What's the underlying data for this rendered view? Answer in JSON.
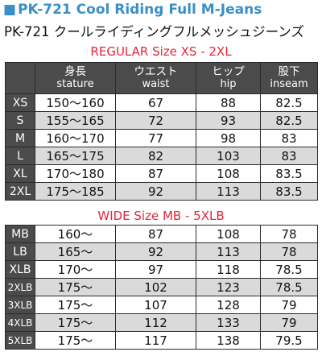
{
  "title_en": "PK-721 Cool Riding Full M-Jeans",
  "title_square": "■",
  "title_jp": "PK-721 クールライディングフルメッシュジーンズ",
  "regular": {
    "heading": "REGULAR Size  XS - 2XL",
    "columns": [
      {
        "jp": "身長",
        "en": "stature"
      },
      {
        "jp": "ウエスト",
        "en": "waist"
      },
      {
        "jp": "ヒップ",
        "en": "hip"
      },
      {
        "jp": "股下",
        "en": "inseam"
      }
    ],
    "rows": [
      {
        "size": "XS",
        "stature": "150〜160",
        "waist": "67",
        "hip": "88",
        "inseam": "82.5"
      },
      {
        "size": "S",
        "stature": "155〜165",
        "waist": "72",
        "hip": "93",
        "inseam": "82.5"
      },
      {
        "size": "M",
        "stature": "160〜170",
        "waist": "77",
        "hip": "98",
        "inseam": "83"
      },
      {
        "size": "L",
        "stature": "165〜175",
        "waist": "82",
        "hip": "103",
        "inseam": "83"
      },
      {
        "size": "XL",
        "stature": "170〜180",
        "waist": "87",
        "hip": "108",
        "inseam": "83.5"
      },
      {
        "size": "2XL",
        "stature": "175〜185",
        "waist": "92",
        "hip": "113",
        "inseam": "83.5"
      }
    ]
  },
  "wide": {
    "heading": "WIDE Size  MB - 5XLB",
    "rows": [
      {
        "size": "MB",
        "stature": "160〜",
        "waist": "87",
        "hip": "108",
        "inseam": "78"
      },
      {
        "size": "LB",
        "stature": "165〜",
        "waist": "92",
        "hip": "113",
        "inseam": "78"
      },
      {
        "size": "XLB",
        "stature": "170〜",
        "waist": "97",
        "hip": "118",
        "inseam": "78.5"
      },
      {
        "size": "2XLB",
        "stature": "175〜",
        "waist": "102",
        "hip": "123",
        "inseam": "78.5"
      },
      {
        "size": "3XLB",
        "stature": "175〜",
        "waist": "107",
        "hip": "128",
        "inseam": "79"
      },
      {
        "size": "4XLB",
        "stature": "175〜",
        "waist": "112",
        "hip": "133",
        "inseam": "79"
      },
      {
        "size": "5XLB",
        "stature": "175〜",
        "waist": "117",
        "hip": "138",
        "inseam": "79.5"
      }
    ]
  },
  "colors": {
    "title_blue": "#3a8fc8",
    "heading_red": "#e8233a",
    "header_gray": "#4b4b4b",
    "stripe_gray": "#dadada"
  }
}
